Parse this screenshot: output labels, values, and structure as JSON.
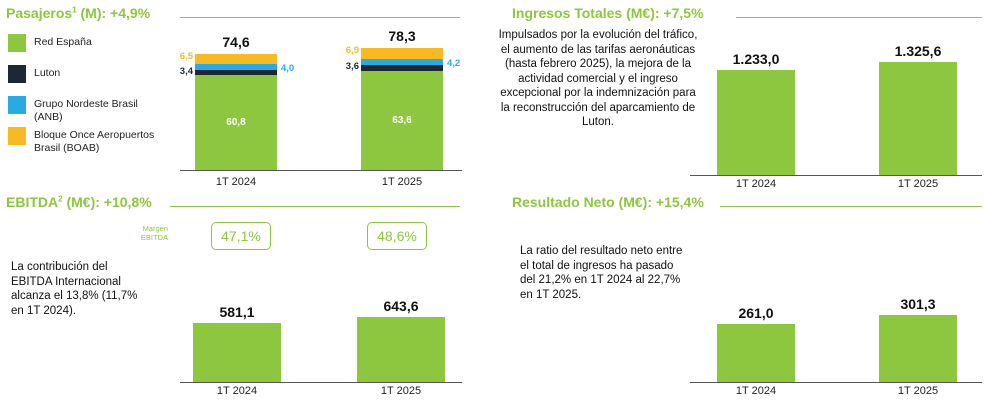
{
  "colors": {
    "accent": "#8dc63f",
    "red_espana": "#8dc63f",
    "luton": "#1c2833",
    "anb": "#29abe2",
    "boab": "#f7b924"
  },
  "passengers": {
    "title": "Pasajeros",
    "title_sup": "1",
    "title_suffix": " (M): +4,9%",
    "legend": [
      {
        "name": "Red España",
        "color_key": "red_espana"
      },
      {
        "name": "Luton",
        "color_key": "luton"
      },
      {
        "name": "Grupo Nordeste Brasil (ANB)",
        "color_key": "anb"
      },
      {
        "name": "Bloque Once Aeropuertos Brasil (BOAB)",
        "color_key": "boab"
      }
    ]
  },
  "revenue": {
    "title": "Ingresos Totales (M€): +7,5%",
    "description": "Impulsados por la evolución del tráfico, el aumento de las tarifas aeronáuticas (hasta febrero 2025), la mejora de la actividad comercial y el ingreso excepcional por la indemnización para la reconstrucción del aparcamiento de Luton."
  },
  "ebitda": {
    "title": "EBITDA",
    "title_sup": "2",
    "title_suffix": " (M€): +10,8%",
    "margin_caption": "Margen EBITDA",
    "margins": [
      "47,1%",
      "48,6%"
    ],
    "description": "La contribución del EBITDA Internacional alcanza el 13,8% (11,7% en 1T 2024)."
  },
  "net": {
    "title": "Resultado Neto (M€): +15,4%",
    "description": "La ratio del resultado neto entre el total de ingresos ha pasado del 21,2% en 1T 2024 al 22,7% en 1T 2025."
  },
  "chart_data": [
    {
      "type": "bar",
      "stacked": true,
      "title": "Pasajeros (M): +4,9%",
      "categories": [
        "1T 2024",
        "1T 2025"
      ],
      "totals": [
        74.6,
        78.3
      ],
      "total_labels": [
        "74,6",
        "78,3"
      ],
      "series": [
        {
          "name": "Red España",
          "values": [
            60.8,
            63.6
          ],
          "labels": [
            "60,8",
            "63,6"
          ]
        },
        {
          "name": "Luton",
          "values": [
            3.4,
            3.6
          ],
          "labels": [
            "3,4",
            "3,6"
          ]
        },
        {
          "name": "Grupo Nordeste Brasil (ANB)",
          "values": [
            4.0,
            4.2
          ],
          "labels": [
            "4,0",
            "4,2"
          ]
        },
        {
          "name": "Bloque Once Aeropuertos Brasil (BOAB)",
          "values": [
            6.5,
            6.9
          ],
          "labels": [
            "6,5",
            "6,9"
          ]
        }
      ],
      "ylim": [
        0,
        90
      ]
    },
    {
      "type": "bar",
      "title": "Ingresos Totales (M€): +7,5%",
      "categories": [
        "1T 2024",
        "1T 2025"
      ],
      "values": [
        1233.0,
        1325.6
      ],
      "labels": [
        "1.233,0",
        "1.325,6"
      ],
      "ylim": [
        0,
        1700
      ]
    },
    {
      "type": "bar",
      "title": "EBITDA (M€): +10,8%",
      "categories": [
        "1T 2024",
        "1T 2025"
      ],
      "values": [
        581.1,
        643.6
      ],
      "labels": [
        "581,1",
        "643,6"
      ],
      "ylim": [
        0,
        1300
      ]
    },
    {
      "type": "bar",
      "title": "Resultado Neto (M€): +15,4%",
      "categories": [
        "1T 2024",
        "1T 2025"
      ],
      "values": [
        261.0,
        301.3
      ],
      "labels": [
        "261,0",
        "301,3"
      ],
      "ylim": [
        0,
        590
      ]
    }
  ]
}
